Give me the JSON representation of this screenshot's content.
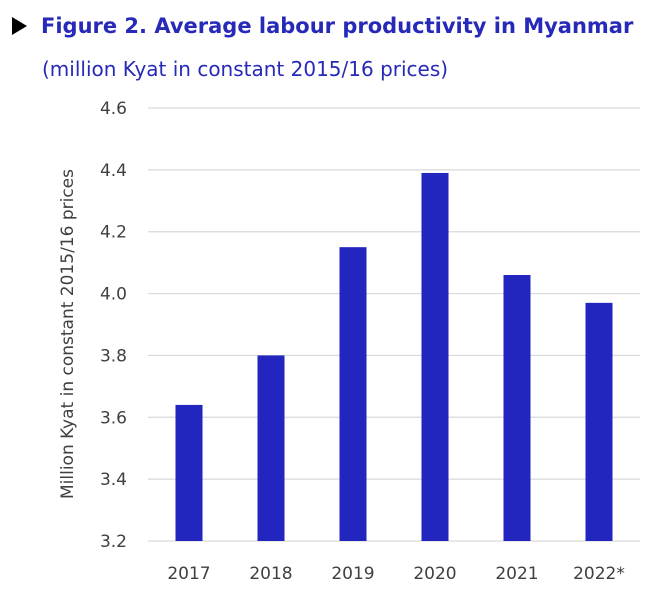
{
  "header": {
    "marker": "▶",
    "title": "Figure 2. Average labour productivity in Myanmar",
    "subtitle": "(million Kyat in constant 2015/16 prices)"
  },
  "colors": {
    "bar": "#2226BF",
    "title": "#2729B8",
    "grid": "#D9D9D9",
    "text": "#404040"
  },
  "chart_data": {
    "type": "bar",
    "title": "Figure 2. Average labour productivity in Myanmar",
    "subtitle": "(million Kyat in constant 2015/16 prices)",
    "categories": [
      "2017",
      "2018",
      "2019",
      "2020",
      "2021",
      "2022*"
    ],
    "values": [
      3.64,
      3.8,
      4.15,
      4.39,
      4.06,
      3.97
    ],
    "xlabel": "",
    "ylabel": "Million Kyat in constant 2015/16 prices",
    "ylim": [
      3.2,
      4.6
    ],
    "yticks": [
      "3.2",
      "3.4",
      "3.6",
      "3.8",
      "4.0",
      "4.2",
      "4.4",
      "4.6"
    ],
    "grid": true,
    "legend": "none"
  }
}
